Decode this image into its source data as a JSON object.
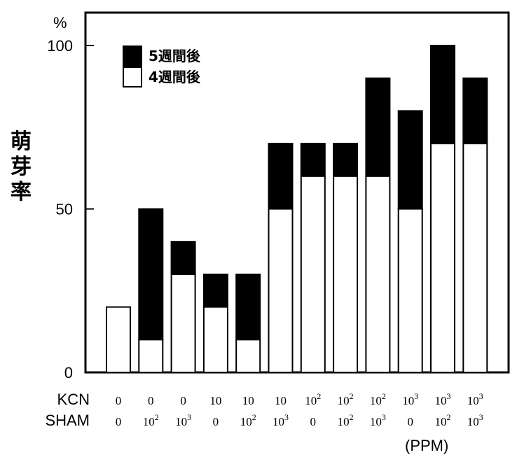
{
  "chart_data": {
    "type": "bar",
    "stacked": true,
    "ylabel": "萌芽率",
    "yunit": "%",
    "ylim": [
      0,
      100
    ],
    "yticks": [
      0,
      50,
      100
    ],
    "xunit": "(PPM)",
    "row_labels": [
      "KCN",
      "SHAM"
    ],
    "categories": [
      {
        "kcn": {
          "base": "0"
        },
        "sham": {
          "base": "0"
        }
      },
      {
        "kcn": {
          "base": "0"
        },
        "sham": {
          "base": "10",
          "exp": "2"
        }
      },
      {
        "kcn": {
          "base": "0"
        },
        "sham": {
          "base": "10",
          "exp": "3"
        }
      },
      {
        "kcn": {
          "base": "10"
        },
        "sham": {
          "base": "0"
        }
      },
      {
        "kcn": {
          "base": "10"
        },
        "sham": {
          "base": "10",
          "exp": "2"
        }
      },
      {
        "kcn": {
          "base": "10"
        },
        "sham": {
          "base": "10",
          "exp": "3"
        }
      },
      {
        "kcn": {
          "base": "10",
          "exp": "2"
        },
        "sham": {
          "base": "0"
        }
      },
      {
        "kcn": {
          "base": "10",
          "exp": "2"
        },
        "sham": {
          "base": "10",
          "exp": "2"
        }
      },
      {
        "kcn": {
          "base": "10",
          "exp": "2"
        },
        "sham": {
          "base": "10",
          "exp": "3"
        }
      },
      {
        "kcn": {
          "base": "10",
          "exp": "3"
        },
        "sham": {
          "base": "0"
        }
      },
      {
        "kcn": {
          "base": "10",
          "exp": "3"
        },
        "sham": {
          "base": "10",
          "exp": "2"
        }
      },
      {
        "kcn": {
          "base": "10",
          "exp": "3"
        },
        "sham": {
          "base": "10",
          "exp": "3"
        }
      }
    ],
    "series": [
      {
        "name": "4週間後",
        "color": "#ffffff",
        "values": [
          20,
          10,
          30,
          20,
          10,
          50,
          60,
          60,
          60,
          50,
          70,
          70
        ]
      },
      {
        "name": "5週間後",
        "color": "#000000",
        "totals": [
          20,
          50,
          40,
          30,
          30,
          70,
          70,
          70,
          90,
          80,
          100,
          90
        ]
      }
    ],
    "legend_position": "top-left",
    "legend_order": [
      "5週間後",
      "4週間後"
    ]
  }
}
